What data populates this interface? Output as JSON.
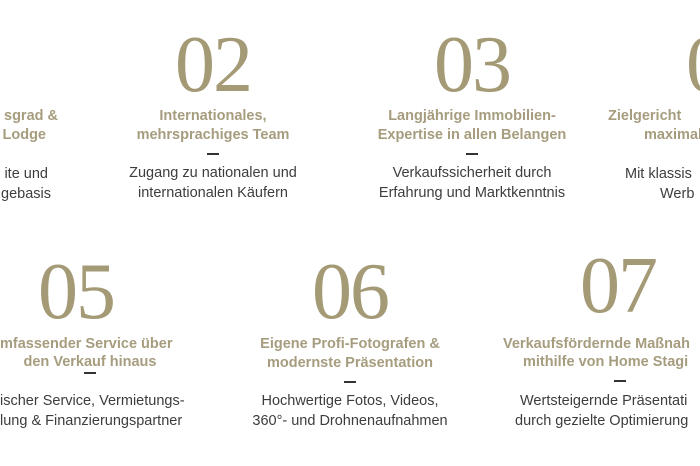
{
  "features": [
    {
      "number": "",
      "title": [
        "sgrad &",
        "Lodge"
      ],
      "body": [
        "ite und",
        "gebasis"
      ]
    },
    {
      "number": "02",
      "title": [
        "Internationales,",
        "mehrsprachiges Team"
      ],
      "body": [
        "Zugang zu nationalen und",
        "internationalen Käufern"
      ]
    },
    {
      "number": "03",
      "title": [
        "Langjährige Immobilien-",
        "Expertise in allen Belangen"
      ],
      "body": [
        "Verkaufssicherheit durch",
        "Erfahrung und Marktkenntnis"
      ]
    },
    {
      "number": "0",
      "title": [
        "Zielgericht",
        "maximale"
      ],
      "body": [
        "Mit klassis",
        "Werb"
      ]
    },
    {
      "number": "05",
      "title": [
        "mfassender Service über",
        "den Verkauf hinaus"
      ],
      "body": [
        "ischer Service, Vermietungs-",
        "lung & Finanzierungspartner"
      ]
    },
    {
      "number": "06",
      "title": [
        "Eigene Profi-Fotografen &",
        "modernste Präsentation"
      ],
      "body": [
        "Hochwertige Fotos, Videos,",
        "360°- und Drohnenaufnahmen"
      ]
    },
    {
      "number": "07",
      "title": [
        "Verkaufsfördernde Maßnah",
        "mithilfe von Home Stagi"
      ],
      "body": [
        "Wertsteigernde Präsentati",
        "durch gezielte Optimierung"
      ]
    }
  ],
  "colors": {
    "gold": "#a49a76",
    "title": "#a69c7e",
    "body": "#3d3d3d"
  }
}
